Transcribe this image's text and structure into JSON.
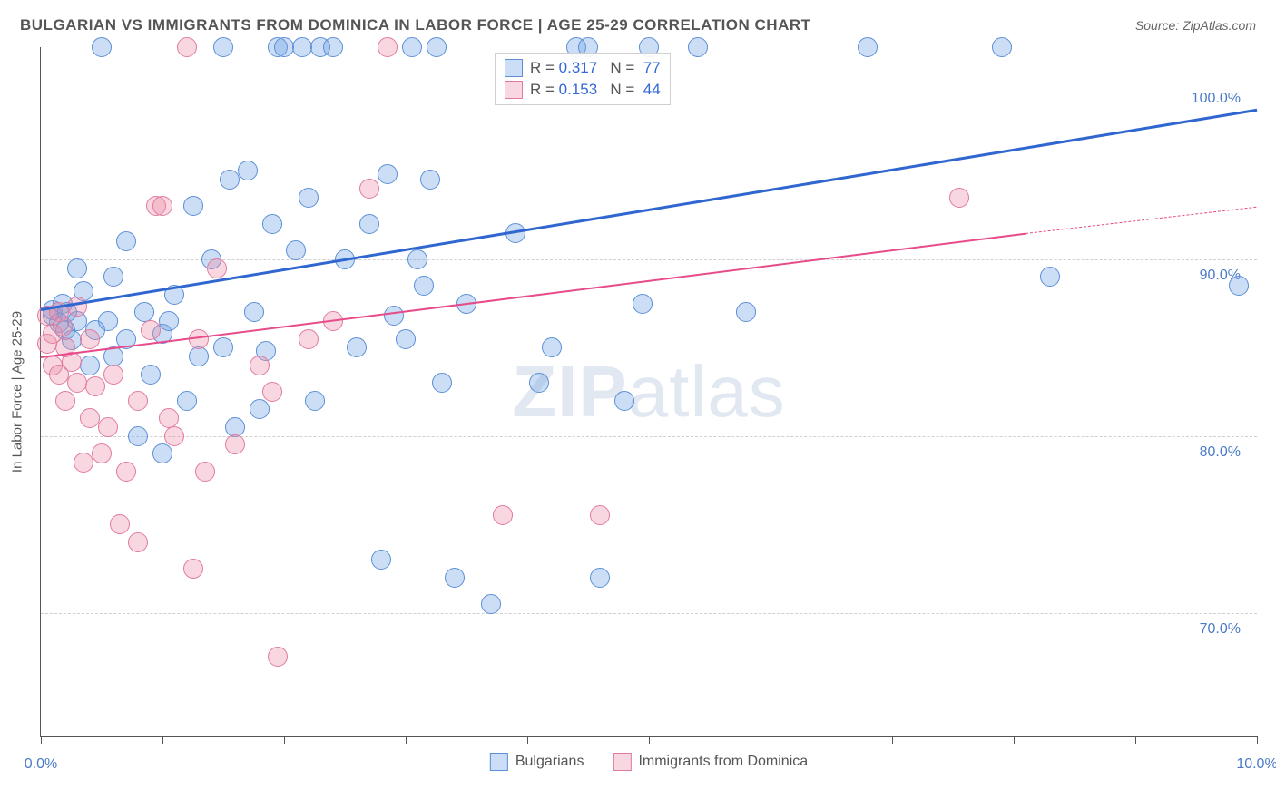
{
  "title": "BULGARIAN VS IMMIGRANTS FROM DOMINICA IN LABOR FORCE | AGE 25-29 CORRELATION CHART",
  "source": "Source: ZipAtlas.com",
  "y_axis_label": "In Labor Force | Age 25-29",
  "watermark": {
    "bold": "ZIP",
    "light": "atlas"
  },
  "chart": {
    "type": "scatter",
    "background": "#ffffff",
    "grid_color": "#d0d0d0",
    "axis_color": "#555555",
    "label_color": "#4a7ac7",
    "point_radius": 10,
    "xlim": [
      0.0,
      10.0
    ],
    "ylim": [
      63.0,
      102.0
    ],
    "y_ticks": [
      70.0,
      80.0,
      90.0,
      100.0
    ],
    "y_tick_labels": [
      "70.0%",
      "80.0%",
      "90.0%",
      "100.0%"
    ],
    "x_ticks_minor": [
      0.0,
      1.0,
      2.0,
      3.0,
      4.0,
      5.0,
      6.0,
      7.0,
      8.0,
      9.0,
      10.0
    ],
    "x_tick_labels": [
      {
        "x": 0.0,
        "label": "0.0%"
      },
      {
        "x": 10.0,
        "label": "10.0%"
      }
    ]
  },
  "series": [
    {
      "id": "bulgarians",
      "label": "Bulgarians",
      "fill": "rgba(110,160,225,0.35)",
      "stroke": "#5b8fd6",
      "trend_color": "#2f66d0",
      "trend_width": 2.5,
      "r": "0.317",
      "n": "77",
      "trend": {
        "x1": 0.0,
        "y1": 87.2,
        "x2": 10.0,
        "y2": 98.5
      },
      "points": [
        [
          0.1,
          86.8
        ],
        [
          0.1,
          87.1
        ],
        [
          0.15,
          86.4
        ],
        [
          0.18,
          87.5
        ],
        [
          0.2,
          86.0
        ],
        [
          0.22,
          87.0
        ],
        [
          0.25,
          85.4
        ],
        [
          0.3,
          86.5
        ],
        [
          0.3,
          89.5
        ],
        [
          0.35,
          88.2
        ],
        [
          0.4,
          84.0
        ],
        [
          0.45,
          86.0
        ],
        [
          0.5,
          102.0
        ],
        [
          0.55,
          86.5
        ],
        [
          0.6,
          84.5
        ],
        [
          0.6,
          89.0
        ],
        [
          0.7,
          85.5
        ],
        [
          0.7,
          91.0
        ],
        [
          0.8,
          80.0
        ],
        [
          0.85,
          87.0
        ],
        [
          0.9,
          83.5
        ],
        [
          1.0,
          85.8
        ],
        [
          1.0,
          79.0
        ],
        [
          1.05,
          86.5
        ],
        [
          1.1,
          88.0
        ],
        [
          1.2,
          82.0
        ],
        [
          1.25,
          93.0
        ],
        [
          1.3,
          84.5
        ],
        [
          1.4,
          90.0
        ],
        [
          1.5,
          85.0
        ],
        [
          1.5,
          102.0
        ],
        [
          1.55,
          94.5
        ],
        [
          1.6,
          80.5
        ],
        [
          1.7,
          95.0
        ],
        [
          1.75,
          87.0
        ],
        [
          1.8,
          81.5
        ],
        [
          1.85,
          84.8
        ],
        [
          1.9,
          92.0
        ],
        [
          1.95,
          102.0
        ],
        [
          2.0,
          102.0
        ],
        [
          2.1,
          90.5
        ],
        [
          2.15,
          102.0
        ],
        [
          2.2,
          93.5
        ],
        [
          2.25,
          82.0
        ],
        [
          2.3,
          102.0
        ],
        [
          2.4,
          102.0
        ],
        [
          2.5,
          90.0
        ],
        [
          2.6,
          85.0
        ],
        [
          2.7,
          92.0
        ],
        [
          2.8,
          73.0
        ],
        [
          2.85,
          94.8
        ],
        [
          2.9,
          86.8
        ],
        [
          3.0,
          85.5
        ],
        [
          3.05,
          102.0
        ],
        [
          3.1,
          90.0
        ],
        [
          3.15,
          88.5
        ],
        [
          3.2,
          94.5
        ],
        [
          3.25,
          102.0
        ],
        [
          3.3,
          83.0
        ],
        [
          3.4,
          72.0
        ],
        [
          3.5,
          87.5
        ],
        [
          3.7,
          70.5
        ],
        [
          3.9,
          91.5
        ],
        [
          4.1,
          83.0
        ],
        [
          4.2,
          85.0
        ],
        [
          4.4,
          102.0
        ],
        [
          4.5,
          102.0
        ],
        [
          4.6,
          72.0
        ],
        [
          4.8,
          82.0
        ],
        [
          4.95,
          87.5
        ],
        [
          5.0,
          102.0
        ],
        [
          5.4,
          102.0
        ],
        [
          5.8,
          87.0
        ],
        [
          6.8,
          102.0
        ],
        [
          7.9,
          102.0
        ],
        [
          8.3,
          89.0
        ],
        [
          9.85,
          88.5
        ]
      ]
    },
    {
      "id": "dominica",
      "label": "Immigrants from Dominica",
      "fill": "rgba(235,140,165,0.35)",
      "stroke": "#e17aa0",
      "trend_color": "#e74b8a",
      "trend_width": 2,
      "r": "0.153",
      "n": "44",
      "trend": {
        "x1": 0.0,
        "y1": 84.5,
        "x2": 8.1,
        "y2": 91.5
      },
      "trend_dashed_ext": {
        "x1": 8.1,
        "y1": 91.5,
        "x2": 10.0,
        "y2": 93.0
      },
      "points": [
        [
          0.05,
          86.8
        ],
        [
          0.05,
          85.2
        ],
        [
          0.1,
          84.0
        ],
        [
          0.1,
          85.8
        ],
        [
          0.15,
          87.0
        ],
        [
          0.15,
          83.5
        ],
        [
          0.18,
          86.2
        ],
        [
          0.2,
          82.0
        ],
        [
          0.2,
          85.0
        ],
        [
          0.25,
          84.2
        ],
        [
          0.3,
          87.3
        ],
        [
          0.3,
          83.0
        ],
        [
          0.35,
          78.5
        ],
        [
          0.4,
          81.0
        ],
        [
          0.4,
          85.5
        ],
        [
          0.45,
          82.8
        ],
        [
          0.5,
          79.0
        ],
        [
          0.55,
          80.5
        ],
        [
          0.6,
          83.5
        ],
        [
          0.65,
          75.0
        ],
        [
          0.7,
          78.0
        ],
        [
          0.8,
          82.0
        ],
        [
          0.8,
          74.0
        ],
        [
          0.9,
          86.0
        ],
        [
          0.95,
          93.0
        ],
        [
          1.0,
          93.0
        ],
        [
          1.05,
          81.0
        ],
        [
          1.1,
          80.0
        ],
        [
          1.2,
          102.0
        ],
        [
          1.25,
          72.5
        ],
        [
          1.3,
          85.5
        ],
        [
          1.35,
          78.0
        ],
        [
          1.45,
          89.5
        ],
        [
          1.6,
          79.5
        ],
        [
          1.8,
          84.0
        ],
        [
          1.9,
          82.5
        ],
        [
          1.95,
          67.5
        ],
        [
          2.2,
          85.5
        ],
        [
          2.4,
          86.5
        ],
        [
          2.7,
          94.0
        ],
        [
          2.85,
          102.0
        ],
        [
          3.8,
          75.5
        ],
        [
          4.6,
          75.5
        ],
        [
          7.55,
          93.5
        ]
      ]
    }
  ],
  "stat_box": {
    "rows": [
      {
        "series": "bulgarians",
        "r_label": "R =",
        "n_label": "N ="
      },
      {
        "series": "dominica",
        "r_label": "R =",
        "n_label": "N ="
      }
    ]
  }
}
